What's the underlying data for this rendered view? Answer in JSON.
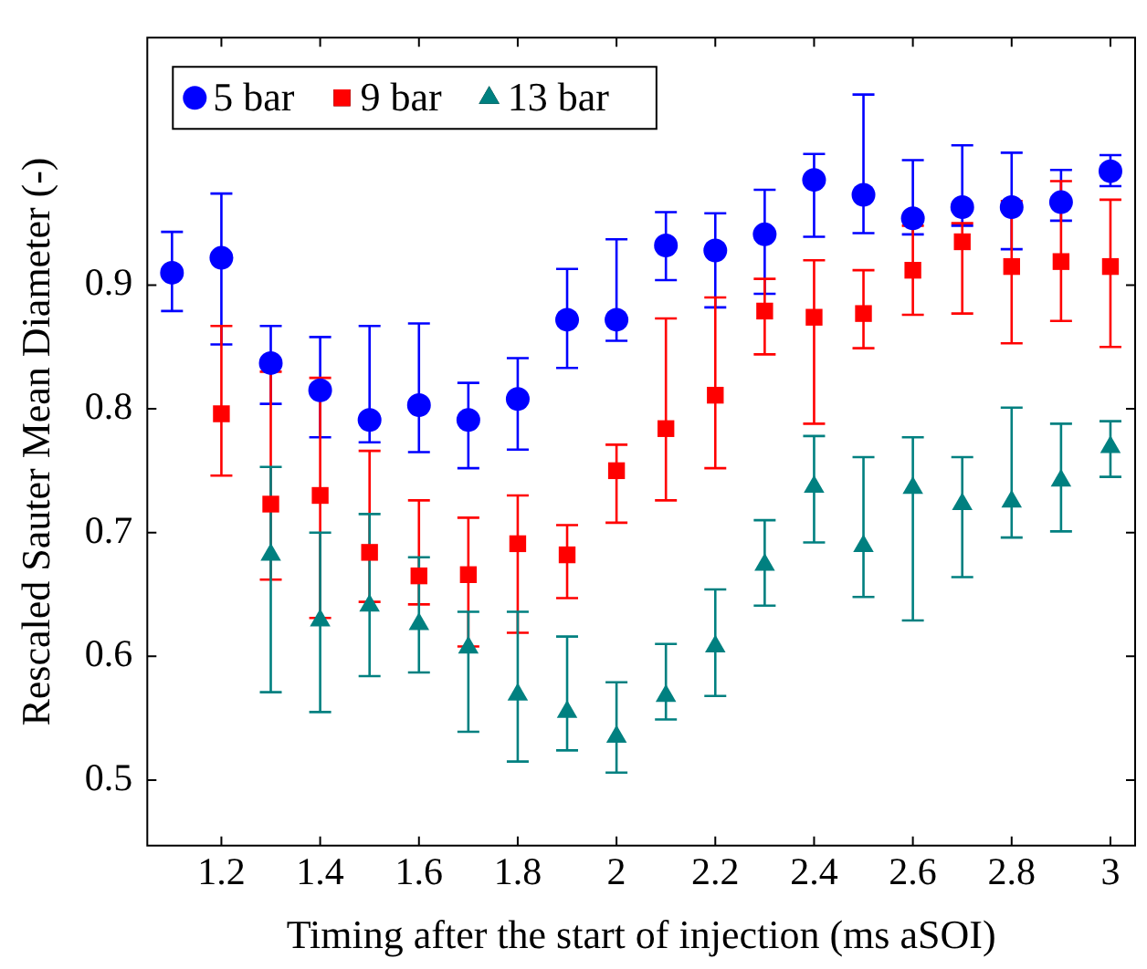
{
  "chart_data": {
    "type": "scatter",
    "xlabel": "Timing after the start of injection (ms aSOI)",
    "ylabel": "Rescaled Sauter Mean Diameter (-)",
    "x": [
      1.1,
      1.2,
      1.3,
      1.4,
      1.5,
      1.6,
      1.7,
      1.8,
      1.9,
      2.0,
      2.1,
      2.2,
      2.3,
      2.4,
      2.5,
      2.6,
      2.7,
      2.8,
      2.9,
      3.0
    ],
    "series": [
      {
        "name": "5 bar",
        "color": "#0000ff",
        "marker": "circle",
        "values": [
          0.91,
          0.922,
          0.837,
          0.815,
          0.791,
          0.803,
          0.791,
          0.808,
          0.872,
          0.872,
          0.932,
          0.928,
          0.941,
          0.985,
          0.973,
          0.954,
          0.963,
          0.963,
          0.967,
          0.992
        ],
        "errors": [
          [
            0.879,
            0.943
          ],
          [
            0.852,
            0.974
          ],
          [
            0.804,
            0.867
          ],
          [
            0.777,
            0.858
          ],
          [
            0.773,
            0.867
          ],
          [
            0.765,
            0.869
          ],
          [
            0.752,
            0.821
          ],
          [
            0.767,
            0.841
          ],
          [
            0.833,
            0.913
          ],
          [
            0.855,
            0.937
          ],
          [
            0.904,
            0.959
          ],
          [
            0.882,
            0.958
          ],
          [
            0.893,
            0.977
          ],
          [
            0.939,
            1.006
          ],
          [
            0.942,
            1.054
          ],
          [
            0.941,
            1.001
          ],
          [
            0.948,
            1.013
          ],
          [
            0.929,
            1.007
          ],
          [
            0.952,
            0.993
          ],
          [
            0.98,
            1.005
          ]
        ]
      },
      {
        "name": "9 bar",
        "color": "#ff0000",
        "marker": "square",
        "x": [
          1.2,
          1.3,
          1.4,
          1.5,
          1.6,
          1.7,
          1.8,
          1.9,
          2.0,
          2.1,
          2.2,
          2.3,
          2.4,
          2.5,
          2.6,
          2.7,
          2.8,
          2.9,
          3.0
        ],
        "values": [
          0.796,
          0.723,
          0.73,
          0.684,
          0.665,
          0.666,
          0.691,
          0.682,
          0.75,
          0.784,
          0.811,
          0.879,
          0.874,
          0.877,
          0.912,
          0.935,
          0.915,
          0.919,
          0.915
        ],
        "errors": [
          [
            0.746,
            0.867
          ],
          [
            0.662,
            0.83
          ],
          [
            0.631,
            0.825
          ],
          [
            0.644,
            0.766
          ],
          [
            0.642,
            0.726
          ],
          [
            0.608,
            0.712
          ],
          [
            0.619,
            0.73
          ],
          [
            0.647,
            0.706
          ],
          [
            0.708,
            0.771
          ],
          [
            0.726,
            0.873
          ],
          [
            0.752,
            0.89
          ],
          [
            0.844,
            0.905
          ],
          [
            0.788,
            0.92
          ],
          [
            0.849,
            0.912
          ],
          [
            0.876,
            0.948
          ],
          [
            0.877,
            0.95
          ],
          [
            0.853,
            0.968
          ],
          [
            0.871,
            0.984
          ],
          [
            0.85,
            0.969
          ]
        ]
      },
      {
        "name": "13 bar",
        "color": "#008080",
        "marker": "triangle",
        "x": [
          1.3,
          1.4,
          1.5,
          1.6,
          1.7,
          1.8,
          1.9,
          2.0,
          2.1,
          2.2,
          2.3,
          2.4,
          2.5,
          2.6,
          2.7,
          2.8,
          2.9,
          3.0
        ],
        "values": [
          0.682,
          0.629,
          0.641,
          0.626,
          0.607,
          0.569,
          0.555,
          0.535,
          0.568,
          0.608,
          0.674,
          0.737,
          0.689,
          0.736,
          0.723,
          0.725,
          0.742,
          0.769
        ],
        "errors": [
          [
            0.571,
            0.753
          ],
          [
            0.555,
            0.7
          ],
          [
            0.584,
            0.715
          ],
          [
            0.587,
            0.68
          ],
          [
            0.539,
            0.636
          ],
          [
            0.515,
            0.636
          ],
          [
            0.524,
            0.616
          ],
          [
            0.506,
            0.579
          ],
          [
            0.549,
            0.61
          ],
          [
            0.568,
            0.654
          ],
          [
            0.641,
            0.71
          ],
          [
            0.692,
            0.778
          ],
          [
            0.648,
            0.761
          ],
          [
            0.629,
            0.777
          ],
          [
            0.664,
            0.761
          ],
          [
            0.696,
            0.801
          ],
          [
            0.701,
            0.788
          ],
          [
            0.745,
            0.79
          ]
        ]
      }
    ],
    "xlim": [
      1.05,
      3.05
    ],
    "xticks": [
      1.2,
      1.4,
      1.6,
      1.8,
      2,
      2.2,
      2.4,
      2.6,
      2.8,
      3
    ],
    "ylim": [
      0.447,
      1.1
    ],
    "yticks": [
      0.5,
      0.6,
      0.7,
      0.8,
      0.9
    ],
    "grid": false,
    "legend": "top left"
  }
}
